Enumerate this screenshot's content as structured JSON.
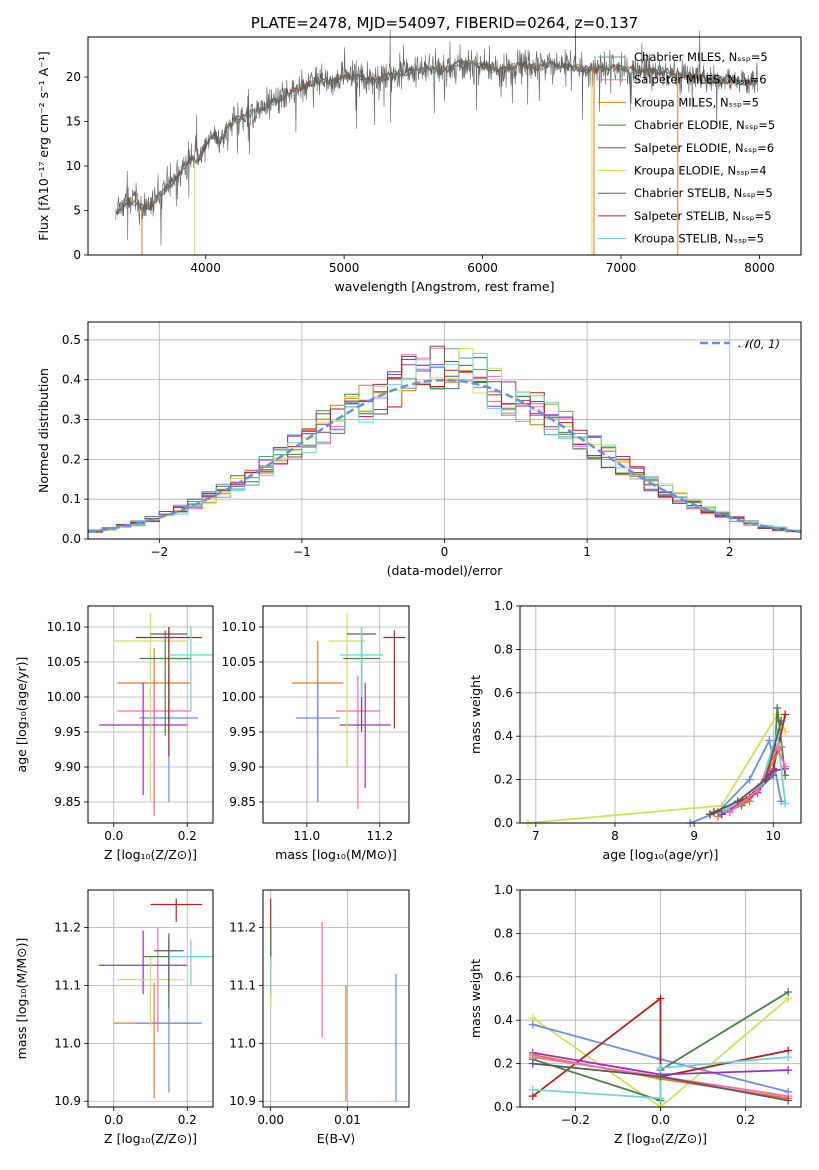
{
  "colors": {
    "chabrier_miles": "#5f9ea0",
    "salpeter_miles": "#ff69b4",
    "kroupa_miles": "#c8860a",
    "chabrier_elodie": "#4a7f4a",
    "salpeter_elodie": "#9b30b8",
    "kroupa_elodie": "#d4e157",
    "chabrier_stelib": "#5a5a5a",
    "salpeter_stelib": "#b22222",
    "kroupa_stelib": "#6fd4d4",
    "orange": "#e07b2a",
    "blue": "#6a8ee0",
    "gaussian": "#6a8ee0"
  },
  "chart_data": [
    {
      "id": "spectrum",
      "type": "line",
      "title": "PLATE=2478, MJD=54097, FIBERID=0264, z=0.137",
      "xlabel": "wavelength [Angstrom, rest frame]",
      "ylabel": "Flux [fλ10⁻¹⁷ erg cm⁻² s⁻¹ A⁻¹]",
      "xlim": [
        3150,
        8300
      ],
      "ylim": [
        0,
        24.5
      ],
      "xticks": [
        "4000",
        "5000",
        "6000",
        "7000",
        "8000"
      ],
      "yticks": [
        "0",
        "5",
        "10",
        "15",
        "20"
      ],
      "legend_position": "top-right",
      "legend": [
        "Chabrier MILES, Nₛₛₚ=5",
        "Salpeter MILES, Nₛₛₚ=6",
        "Kroupa MILES, Nₛₛₚ=5",
        "Chabrier ELODIE, Nₛₛₚ=5",
        "Salpeter ELODIE, Nₛₛₚ=6",
        "Kroupa ELODIE, Nₛₛₚ=4",
        "Chabrier STELIB, Nₛₛₚ=5",
        "Salpeter STELIB, Nₛₛₚ=5",
        "Kroupa STELIB, Nₛₛₚ=5"
      ],
      "series_wavelength": [
        3350,
        3400,
        3450,
        3500,
        3550,
        3600,
        3650,
        3700,
        3750,
        3800,
        3850,
        3900,
        3950,
        4000,
        4050,
        4100,
        4150,
        4200,
        4300,
        4400,
        4500,
        4600,
        4700,
        4800,
        4900,
        5000,
        5100,
        5200,
        5300,
        5400,
        5500,
        5600,
        5700,
        5800,
        5900,
        6000,
        6100,
        6200,
        6300,
        6400,
        6500,
        6600,
        6700,
        6800,
        6900,
        7000,
        7100,
        7200,
        7300,
        7400,
        7500,
        7600,
        7700,
        7800,
        7900,
        8000
      ],
      "series_flux": [
        4.8,
        5.6,
        6.2,
        5.9,
        5.3,
        5.6,
        6.4,
        7.4,
        7.9,
        8.8,
        10.1,
        10.8,
        10.4,
        12.2,
        13.6,
        12.8,
        14.1,
        15.0,
        15.8,
        16.4,
        17.3,
        18.2,
        19.0,
        19.6,
        19.3,
        20.2,
        19.9,
        19.5,
        20.0,
        20.4,
        20.7,
        21.0,
        20.6,
        21.3,
        21.6,
        21.2,
        20.7,
        21.1,
        21.4,
        21.0,
        21.5,
        21.2,
        21.0,
        20.8,
        21.1,
        20.9,
        20.8,
        20.5,
        20.7,
        20.3,
        20.1,
        19.9,
        19.7,
        19.6,
        19.5,
        19.4
      ]
    },
    {
      "id": "residuals",
      "type": "line",
      "xlabel": "(data-model)/error",
      "ylabel": "Normed distribution",
      "xlim": [
        -2.5,
        2.5
      ],
      "ylim": [
        0,
        0.545
      ],
      "xticks": [
        "−2",
        "−1",
        "0",
        "1",
        "2"
      ],
      "yticks": [
        "0.0",
        "0.1",
        "0.2",
        "0.3",
        "0.4",
        "0.5"
      ],
      "legend": [
        "𝒩(0, 1)"
      ],
      "legend_position": "top-right",
      "bin_width": 0.1
    },
    {
      "id": "age_vs_Z",
      "type": "scatter",
      "xlabel": "Z [log₁₀(Z/Z⊙)]",
      "ylabel": "age  [log₁₀(age/yr)]",
      "xlim": [
        -0.07,
        0.27
      ],
      "ylim": [
        9.82,
        10.13
      ],
      "xticks": [
        "0.0",
        "0.2"
      ],
      "yticks": [
        "9.85",
        "9.90",
        "9.95",
        "10.00",
        "10.05",
        "10.10"
      ],
      "points": [
        {
          "x": 0.11,
          "y": 10.02,
          "xerr": 0.1,
          "yerr_lo": 0.18,
          "yerr_hi": 0.05,
          "c": "orange"
        },
        {
          "x": 0.15,
          "y": 9.97,
          "xerr": 0.08,
          "yerr_lo": 0.12,
          "yerr_hi": 0.06,
          "c": "blue"
        },
        {
          "x": 0.11,
          "y": 9.98,
          "xerr": 0.1,
          "yerr_lo": 0.15,
          "yerr_hi": 0.04,
          "c": "salpeter_miles"
        },
        {
          "x": 0.08,
          "y": 9.96,
          "xerr": 0.12,
          "yerr_lo": 0.1,
          "yerr_hi": 0.06,
          "c": "salpeter_elodie"
        },
        {
          "x": 0.1,
          "y": 10.08,
          "xerr": 0.1,
          "yerr_lo": 0.23,
          "yerr_hi": 0.04,
          "c": "kroupa_elodie"
        },
        {
          "x": 0.14,
          "y": 10.055,
          "xerr": 0.07,
          "yerr_lo": 0.11,
          "yerr_hi": 0.04,
          "c": "chabrier_elodie"
        },
        {
          "x": 0.15,
          "y": 10.09,
          "xerr": 0.05,
          "yerr_lo": 0.14,
          "yerr_hi": 0.01,
          "c": "chabrier_stelib"
        },
        {
          "x": 0.15,
          "y": 10.085,
          "xerr": 0.09,
          "yerr_lo": 0.17,
          "yerr_hi": 0.015,
          "c": "salpeter_stelib"
        },
        {
          "x": 0.21,
          "y": 10.06,
          "xerr": 0.06,
          "yerr_lo": 0.08,
          "yerr_hi": 0.04,
          "c": "kroupa_stelib"
        }
      ]
    },
    {
      "id": "age_vs_mass",
      "type": "scatter",
      "xlabel": "mass [log₁₀(M/M⊙)]",
      "ylabel": "",
      "xlim": [
        10.88,
        11.28
      ],
      "ylim": [
        9.82,
        10.13
      ],
      "xticks": [
        "11.0",
        "11.2"
      ],
      "yticks": [
        "9.85",
        "9.90",
        "9.95",
        "10.00",
        "10.05",
        "10.10"
      ],
      "points": [
        {
          "x": 11.03,
          "y": 10.02,
          "xerr": 0.07,
          "yerr_lo": 0.17,
          "yerr_hi": 0.06,
          "c": "orange"
        },
        {
          "x": 11.03,
          "y": 9.97,
          "xerr": 0.06,
          "yerr_lo": 0.12,
          "yerr_hi": 0.05,
          "c": "blue"
        },
        {
          "x": 11.14,
          "y": 9.98,
          "xerr": 0.06,
          "yerr_lo": 0.14,
          "yerr_hi": 0.05,
          "c": "salpeter_miles"
        },
        {
          "x": 11.16,
          "y": 9.96,
          "xerr": 0.07,
          "yerr_lo": 0.09,
          "yerr_hi": 0.06,
          "c": "salpeter_elodie"
        },
        {
          "x": 11.11,
          "y": 10.08,
          "xerr": 0.05,
          "yerr_lo": 0.18,
          "yerr_hi": 0.04,
          "c": "kroupa_elodie"
        },
        {
          "x": 11.15,
          "y": 10.055,
          "xerr": 0.05,
          "yerr_lo": 0.1,
          "yerr_hi": 0.03,
          "c": "chabrier_elodie"
        },
        {
          "x": 11.15,
          "y": 10.09,
          "xerr": 0.04,
          "yerr_lo": 0.14,
          "yerr_hi": 0.01,
          "c": "chabrier_stelib"
        },
        {
          "x": 11.24,
          "y": 10.085,
          "xerr": 0.03,
          "yerr_lo": 0.13,
          "yerr_hi": 0.01,
          "c": "salpeter_stelib"
        },
        {
          "x": 11.15,
          "y": 10.06,
          "xerr": 0.06,
          "yerr_lo": 0.06,
          "yerr_hi": 0.04,
          "c": "kroupa_stelib"
        }
      ]
    },
    {
      "id": "weight_vs_age",
      "type": "line",
      "xlabel": "age  [log₁₀(age/yr)]",
      "ylabel": "mass weight",
      "xlim": [
        6.8,
        10.35
      ],
      "ylim": [
        0,
        1.0
      ],
      "xticks": [
        "7",
        "8",
        "9",
        "10"
      ],
      "yticks": [
        "0.0",
        "0.2",
        "0.4",
        "0.6",
        "0.8",
        "1.0"
      ],
      "series": [
        {
          "c": "kroupa_elodie",
          "x": [
            6.9,
            9.35,
            10.05,
            10.15
          ],
          "y": [
            0.0,
            0.08,
            0.5,
            0.42
          ]
        },
        {
          "c": "blue",
          "x": [
            8.95,
            9.3,
            9.7,
            9.95,
            10.1
          ],
          "y": [
            0.0,
            0.05,
            0.2,
            0.38,
            0.1
          ]
        },
        {
          "c": "chabrier_elodie",
          "x": [
            9.2,
            9.6,
            10.0,
            10.05,
            10.15
          ],
          "y": [
            0.04,
            0.08,
            0.22,
            0.53,
            0.22
          ]
        },
        {
          "c": "salpeter_stelib",
          "x": [
            9.25,
            9.7,
            10.0,
            10.15
          ],
          "y": [
            0.05,
            0.12,
            0.25,
            0.5
          ]
        },
        {
          "c": "orange",
          "x": [
            9.3,
            9.7,
            9.95,
            10.1
          ],
          "y": [
            0.03,
            0.1,
            0.25,
            0.35
          ]
        },
        {
          "c": "salpeter_elodie",
          "x": [
            9.35,
            9.8,
            10.0,
            10.15
          ],
          "y": [
            0.04,
            0.14,
            0.24,
            0.25
          ]
        },
        {
          "c": "kroupa_stelib",
          "x": [
            9.4,
            9.85,
            10.05,
            10.15
          ],
          "y": [
            0.06,
            0.18,
            0.42,
            0.09
          ]
        },
        {
          "c": "salpeter_miles",
          "x": [
            9.45,
            9.8,
            10.05,
            10.15
          ],
          "y": [
            0.05,
            0.15,
            0.35,
            0.26
          ]
        },
        {
          "c": "chabrier_stelib",
          "x": [
            9.2,
            9.55,
            9.9,
            10.1
          ],
          "y": [
            0.04,
            0.1,
            0.2,
            0.47
          ]
        }
      ]
    },
    {
      "id": "mass_vs_Z",
      "type": "scatter",
      "xlabel": "Z [log₁₀(Z/Z⊙)]",
      "ylabel": "mass [log₁₀(M/M⊙)]",
      "xlim": [
        -0.07,
        0.27
      ],
      "ylim": [
        10.89,
        11.265
      ],
      "xticks": [
        "0.0",
        "0.2"
      ],
      "yticks": [
        "10.9",
        "11.0",
        "11.1",
        "11.2"
      ],
      "points": [
        {
          "x": 0.11,
          "y": 11.035,
          "xerr": 0.11,
          "yerr_lo": 0.13,
          "yerr_hi": 0.07,
          "c": "orange"
        },
        {
          "x": 0.15,
          "y": 11.035,
          "xerr": 0.09,
          "yerr_lo": 0.12,
          "yerr_hi": 0.06,
          "c": "blue"
        },
        {
          "x": 0.12,
          "y": 11.15,
          "xerr": 0.04,
          "yerr_lo": 0.13,
          "yerr_hi": 0.05,
          "c": "salpeter_miles"
        },
        {
          "x": 0.08,
          "y": 11.135,
          "xerr": 0.12,
          "yerr_lo": 0.05,
          "yerr_hi": 0.06,
          "c": "salpeter_elodie"
        },
        {
          "x": 0.1,
          "y": 11.11,
          "xerr": 0.09,
          "yerr_lo": 0.08,
          "yerr_hi": 0.04,
          "c": "kroupa_elodie"
        },
        {
          "x": 0.15,
          "y": 11.15,
          "xerr": 0.07,
          "yerr_lo": 0.09,
          "yerr_hi": 0.03,
          "c": "chabrier_elodie"
        },
        {
          "x": 0.15,
          "y": 11.16,
          "xerr": 0.04,
          "yerr_lo": 0.07,
          "yerr_hi": 0.03,
          "c": "chabrier_stelib"
        },
        {
          "x": 0.17,
          "y": 11.24,
          "xerr": 0.07,
          "yerr_lo": 0.03,
          "yerr_hi": 0.01,
          "c": "salpeter_stelib"
        },
        {
          "x": 0.21,
          "y": 11.15,
          "xerr": 0.06,
          "yerr_lo": 0.05,
          "yerr_hi": 0.03,
          "c": "kroupa_stelib"
        }
      ]
    },
    {
      "id": "mass_vs_ebv",
      "type": "scatter",
      "xlabel": "E(B-V)",
      "ylabel": "",
      "xlim": [
        -0.001,
        0.018
      ],
      "ylim": [
        10.89,
        11.265
      ],
      "xticks": [
        "0.00",
        "0.01"
      ],
      "yticks": [
        "10.9",
        "11.0",
        "11.1",
        "11.2"
      ],
      "points": [
        {
          "x": 0.0,
          "y": 11.2,
          "yerr_lo": 0.05,
          "yerr_hi": 0.05,
          "c": "salpeter_stelib"
        },
        {
          "x": 0.0,
          "y": 11.16,
          "yerr_lo": 0.08,
          "yerr_hi": 0.04,
          "c": "chabrier_elodie"
        },
        {
          "x": 0.0,
          "y": 11.1,
          "yerr_lo": 0.04,
          "yerr_hi": 0.04,
          "c": "kroupa_elodie"
        },
        {
          "x": 0.0,
          "y": 11.12,
          "yerr_lo": 0.03,
          "yerr_hi": 0.03,
          "c": "kroupa_stelib"
        },
        {
          "x": 0.0067,
          "y": 11.11,
          "yerr_lo": 0.1,
          "yerr_hi": 0.1,
          "c": "salpeter_miles"
        },
        {
          "x": 0.0098,
          "y": 11.0,
          "yerr_lo": 0.1,
          "yerr_hi": 0.1,
          "c": "orange"
        },
        {
          "x": 0.0163,
          "y": 11.01,
          "yerr_lo": 0.11,
          "yerr_hi": 0.11,
          "c": "blue"
        }
      ]
    },
    {
      "id": "weight_vs_Z",
      "type": "line",
      "xlabel": "Z [log₁₀(Z/Z⊙)]",
      "ylabel": "mass weight",
      "xlim": [
        -0.33,
        0.33
      ],
      "ylim": [
        0,
        1.0
      ],
      "xticks": [
        "−0.2",
        "0.0",
        "0.2"
      ],
      "yticks": [
        "0.0",
        "0.2",
        "0.4",
        "0.6",
        "0.8",
        "1.0"
      ],
      "series": [
        {
          "c": "kroupa_elodie",
          "x": [
            -0.3,
            0.0,
            0.3
          ],
          "y": [
            0.41,
            0.0,
            0.5
          ]
        },
        {
          "c": "blue",
          "x": [
            -0.3,
            0.0,
            0.3
          ],
          "y": [
            0.38,
            0.22,
            0.07
          ]
        },
        {
          "c": "salpeter_stelib",
          "x": [
            -0.3,
            0.0,
            0.0,
            0.3
          ],
          "y": [
            0.05,
            0.5,
            0.14,
            0.26
          ]
        },
        {
          "c": "chabrier_elodie",
          "x": [
            -0.3,
            0.0,
            0.0,
            0.3
          ],
          "y": [
            0.22,
            0.03,
            0.17,
            0.53
          ]
        },
        {
          "c": "salpeter_elodie",
          "x": [
            -0.3,
            0.0,
            0.3
          ],
          "y": [
            0.25,
            0.15,
            0.17
          ]
        },
        {
          "c": "orange",
          "x": [
            -0.3,
            0.0,
            0.3
          ],
          "y": [
            0.24,
            0.13,
            0.04
          ]
        },
        {
          "c": "salpeter_miles",
          "x": [
            -0.3,
            0.0,
            0.3
          ],
          "y": [
            0.23,
            0.14,
            0.05
          ]
        },
        {
          "c": "kroupa_stelib",
          "x": [
            -0.3,
            0.0,
            0.0,
            0.3
          ],
          "y": [
            0.08,
            0.04,
            0.18,
            0.23
          ]
        },
        {
          "c": "chabrier_stelib",
          "x": [
            -0.3,
            0.0,
            0.3
          ],
          "y": [
            0.2,
            0.14,
            0.03
          ]
        }
      ]
    }
  ]
}
